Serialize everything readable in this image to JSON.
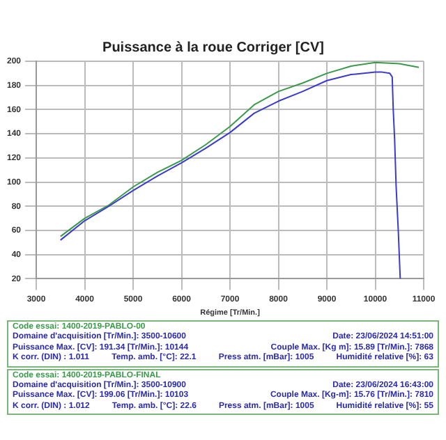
{
  "chart_data": {
    "type": "line",
    "title": "Puissance à la roue Corriger [CV]",
    "xlabel": "Régime [Tr/Min.]",
    "xlim": [
      3000,
      11000
    ],
    "xticks": [
      3000,
      4000,
      5000,
      6000,
      7000,
      8000,
      9000,
      10000,
      11000
    ],
    "ylim": [
      20,
      200
    ],
    "yticks": [
      20,
      40,
      60,
      80,
      100,
      120,
      140,
      160,
      180,
      200
    ],
    "grid": true,
    "legend": false,
    "marker": "none",
    "line_style": "solid",
    "series": [
      {
        "color": "#3a3ad0",
        "x": [
          3500,
          4000,
          4500,
          5000,
          5500,
          6000,
          6500,
          7000,
          7500,
          8000,
          8500,
          9000,
          9500,
          10000,
          10144,
          10300,
          10350,
          10370,
          10400,
          10430,
          10475,
          10515
        ],
        "values": [
          52,
          68,
          80,
          93,
          105,
          116,
          128,
          141,
          157,
          167,
          175,
          184,
          189,
          191,
          191,
          190,
          187,
          161,
          135,
          97,
          60,
          20
        ]
      },
      {
        "color": "#3a9a4a",
        "x": [
          3500,
          4000,
          4500,
          5000,
          5500,
          6000,
          6500,
          7000,
          7500,
          8000,
          8500,
          9000,
          9500,
          10000,
          10500,
          10900
        ],
        "values": [
          55,
          70,
          81,
          96,
          108,
          118,
          131,
          146,
          164,
          175,
          182,
          190,
          196,
          199,
          198,
          195
        ]
      }
    ],
    "annotations": [
      "Code essai: 1400-2019-PABLO-00",
      "Domaine d'acquisition [Tr/Min.]: 3500-10600",
      "Date: 23/06/2024  14:51:00",
      "Puissance Max. [CV]: 191.34   [Tr/Min.]: 10144",
      "Couple Max. [Kg m]: 15.89   [Tr/Min.]: 7868",
      "K corr. (DIN) : 1.011",
      "Temp. amb. [°C]: 22.1",
      "Press atm. [mBar]: 1005",
      "Humidité relative [%]: 63",
      "Code essai: 1400-2019-PABLO-FINAL",
      "Domaine d'acquisition [Tr/Min.]: 3500-10900",
      "Date: 23/06/2024  16:43:00",
      "Puissance Max. [CV]: 199.06   [Tr/Min.]: 10103",
      "Couple Max. [Kg-m]: 15.76   [Tr/Min.]: 7810",
      "K corr. (DIN) : 1.012",
      "Temp. amb. [°C]: 22.6",
      "Press atm. [mBar]: 1005",
      "Humidité relative [%]: 55"
    ]
  }
}
